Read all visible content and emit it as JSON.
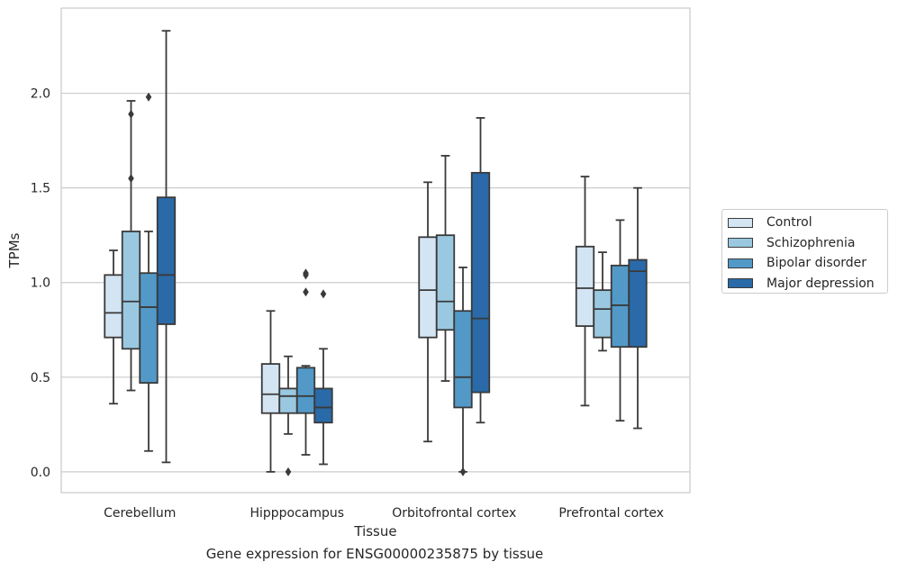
{
  "chart_data": {
    "type": "boxplot",
    "xlabel": "Tissue",
    "ylabel": "TPMs",
    "caption": "Gene expression for ENSG00000235875 by tissue",
    "categories": [
      "Cerebellum",
      "Hipppocampus",
      "Orbitofrontal cortex",
      "Prefrontal cortex"
    ],
    "ylim": [
      -0.11,
      2.45
    ],
    "yticks": [
      "0.0",
      "0.5",
      "1.0",
      "1.5",
      "2.0"
    ],
    "grid": "horizontal",
    "legend_position": "right",
    "series": [
      {
        "name": "Control",
        "color": "#d3e4f3",
        "boxes": [
          {
            "whislo": 0.36,
            "q1": 0.71,
            "med": 0.84,
            "q3": 1.04,
            "whishi": 1.17,
            "fliers": []
          },
          {
            "whislo": 0.0,
            "q1": 0.31,
            "med": 0.41,
            "q3": 0.57,
            "whishi": 0.85,
            "fliers": []
          },
          {
            "whislo": 0.16,
            "q1": 0.71,
            "med": 0.96,
            "q3": 1.24,
            "whishi": 1.53,
            "fliers": []
          },
          {
            "whislo": 0.35,
            "q1": 0.77,
            "med": 0.97,
            "q3": 1.19,
            "whishi": 1.56,
            "fliers": []
          }
        ]
      },
      {
        "name": "Schizophrenia",
        "color": "#9ac8e0",
        "boxes": [
          {
            "whislo": 0.43,
            "q1": 0.65,
            "med": 0.9,
            "q3": 1.27,
            "whishi": 1.96,
            "fliers": [
              1.55,
              1.89
            ]
          },
          {
            "whislo": 0.2,
            "q1": 0.31,
            "med": 0.4,
            "q3": 0.44,
            "whishi": 0.61,
            "fliers": [
              0.0
            ]
          },
          {
            "whislo": 0.48,
            "q1": 0.75,
            "med": 0.9,
            "q3": 1.25,
            "whishi": 1.67,
            "fliers": []
          },
          {
            "whislo": 0.64,
            "q1": 0.71,
            "med": 0.86,
            "q3": 0.96,
            "whishi": 1.16,
            "fliers": []
          }
        ]
      },
      {
        "name": "Bipolar disorder",
        "color": "#5299c8",
        "boxes": [
          {
            "whislo": 0.11,
            "q1": 0.47,
            "med": 0.87,
            "q3": 1.05,
            "whishi": 1.27,
            "fliers": [
              1.98
            ]
          },
          {
            "whislo": 0.09,
            "q1": 0.31,
            "med": 0.4,
            "q3": 0.55,
            "whishi": 0.56,
            "fliers": [
              0.95,
              1.04,
              1.05
            ]
          },
          {
            "whislo": 0.0,
            "q1": 0.34,
            "med": 0.5,
            "q3": 0.85,
            "whishi": 1.08,
            "fliers": [
              0.0
            ]
          },
          {
            "whislo": 0.27,
            "q1": 0.66,
            "med": 0.88,
            "q3": 1.09,
            "whishi": 1.33,
            "fliers": []
          }
        ]
      },
      {
        "name": "Major depression",
        "color": "#2a6aa8",
        "boxes": [
          {
            "whislo": 0.05,
            "q1": 0.78,
            "med": 1.04,
            "q3": 1.45,
            "whishi": 2.33,
            "fliers": []
          },
          {
            "whislo": 0.04,
            "q1": 0.26,
            "med": 0.34,
            "q3": 0.44,
            "whishi": 0.65,
            "fliers": [
              0.94
            ]
          },
          {
            "whislo": 0.26,
            "q1": 0.42,
            "med": 0.81,
            "q3": 1.58,
            "whishi": 1.87,
            "fliers": []
          },
          {
            "whislo": 0.23,
            "q1": 0.66,
            "med": 1.06,
            "q3": 1.12,
            "whishi": 1.5,
            "fliers": []
          }
        ]
      }
    ]
  }
}
